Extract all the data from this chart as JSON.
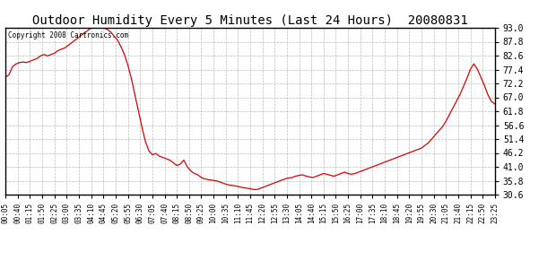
{
  "title": "Outdoor Humidity Every 5 Minutes (Last 24 Hours)  20080831",
  "copyright": "Copyright 2008 Cartronics.com",
  "line_color": "#dd0000",
  "background_color": "#ffffff",
  "grid_color": "#bbbbbb",
  "ylim": [
    30.6,
    93.0
  ],
  "yticks": [
    30.6,
    35.8,
    41.0,
    46.2,
    51.4,
    56.6,
    61.8,
    67.0,
    72.2,
    77.4,
    82.6,
    87.8,
    93.0
  ],
  "xtick_labels": [
    "00:05",
    "00:40",
    "01:15",
    "01:50",
    "02:25",
    "03:00",
    "03:35",
    "04:10",
    "04:45",
    "05:20",
    "05:55",
    "06:30",
    "07:05",
    "07:40",
    "08:15",
    "08:50",
    "09:25",
    "10:00",
    "10:35",
    "11:10",
    "11:45",
    "12:20",
    "12:55",
    "13:30",
    "14:05",
    "14:40",
    "15:15",
    "15:50",
    "16:25",
    "17:00",
    "17:35",
    "18:10",
    "18:45",
    "19:20",
    "19:55",
    "20:30",
    "21:05",
    "21:40",
    "22:15",
    "22:50",
    "23:25"
  ],
  "humidity_values": [
    74.5,
    75.5,
    78.5,
    79.5,
    80.0,
    80.2,
    80.0,
    80.5,
    81.0,
    81.5,
    82.5,
    83.0,
    82.5,
    83.0,
    83.5,
    84.5,
    85.0,
    85.5,
    86.5,
    87.5,
    88.5,
    89.5,
    90.5,
    91.5,
    92.5,
    93.5,
    93.0,
    93.2,
    93.0,
    92.5,
    91.5,
    90.0,
    88.5,
    86.0,
    83.0,
    79.0,
    74.0,
    68.0,
    62.0,
    56.0,
    50.5,
    47.0,
    45.5,
    46.0,
    45.0,
    44.5,
    44.0,
    43.5,
    42.5,
    41.5,
    42.0,
    43.5,
    41.0,
    39.5,
    38.5,
    38.0,
    37.0,
    36.5,
    36.2,
    36.0,
    35.8,
    35.5,
    35.0,
    34.5,
    34.2,
    34.0,
    33.8,
    33.5,
    33.2,
    33.0,
    32.8,
    32.5,
    32.5,
    33.0,
    33.5,
    34.0,
    34.5,
    35.0,
    35.5,
    36.0,
    36.5,
    36.8,
    37.0,
    37.5,
    37.8,
    38.0,
    37.5,
    37.2,
    37.0,
    37.5,
    38.0,
    38.5,
    38.2,
    37.8,
    37.5,
    38.0,
    38.5,
    39.0,
    38.5,
    38.2,
    38.5,
    39.0,
    39.5,
    40.0,
    40.5,
    41.0,
    41.5,
    42.0,
    42.5,
    43.0,
    43.5,
    44.0,
    44.5,
    45.0,
    45.5,
    46.0,
    46.5,
    47.0,
    47.5,
    48.0,
    49.0,
    50.0,
    51.5,
    53.0,
    54.5,
    56.0,
    58.0,
    60.5,
    63.0,
    65.5,
    68.0,
    71.0,
    74.0,
    77.5,
    79.5,
    77.5,
    74.5,
    71.5,
    68.0,
    65.5,
    64.5
  ]
}
